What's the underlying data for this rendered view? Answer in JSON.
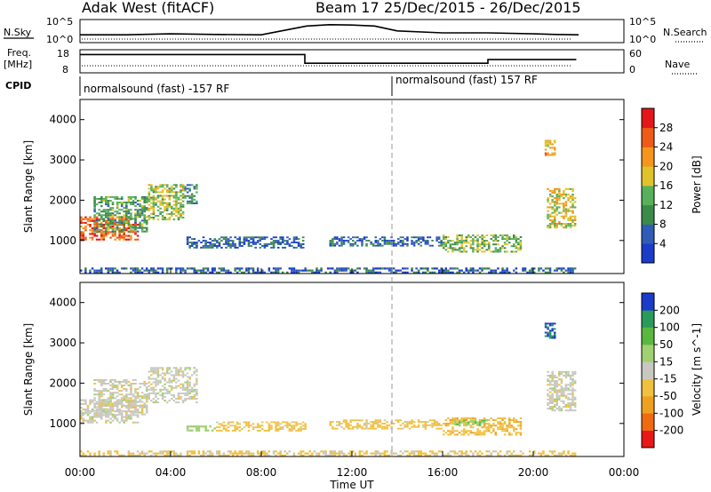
{
  "header": {
    "station": "Adak West (fitACF)",
    "beam": "Beam 17",
    "daterange": "25/Dec/2015 - 26/Dec/2015"
  },
  "nsky_panel": {
    "left_label": "N.Sky",
    "right_label": "N.Search",
    "left_ticks": [
      "10^5",
      "10^0"
    ],
    "right_ticks": [
      "10^5",
      "10^0"
    ]
  },
  "freq_panel": {
    "left_label_1": "Freq.",
    "left_label_2": "[MHz]",
    "right_label": "Nave",
    "left_ticks": [
      "18",
      "8"
    ],
    "right_ticks": [
      "60",
      "0"
    ]
  },
  "cpid_panel": {
    "label": "CPID",
    "segments": [
      "normalsound (fast) -157 RF",
      "normalsound (fast) 157 RF"
    ]
  },
  "power_panel": {
    "ylabel": "Slant Range [km]",
    "yticks": [
      "4000",
      "3000",
      "2000",
      "1000"
    ],
    "colorbar_label": "Power [dB]",
    "colorbar_ticks": [
      "28",
      "24",
      "20",
      "16",
      "12",
      "8",
      "4"
    ]
  },
  "velocity_panel": {
    "ylabel": "Slant Range [km]",
    "yticks": [
      "4000",
      "3000",
      "2000",
      "1000"
    ],
    "colorbar_label": "Velocity [m s^-1]",
    "colorbar_ticks": [
      "200",
      "100",
      "50",
      "15",
      "-15",
      "-50",
      "-100",
      "-200"
    ]
  },
  "xaxis": {
    "ticks": [
      "00:00",
      "04:00",
      "08:00",
      "12:00",
      "16:00",
      "20:00",
      "00:00"
    ],
    "label": "Time UT"
  },
  "colors": {
    "power_scale": [
      "#1a3cc8",
      "#2f5cb8",
      "#3c8a4a",
      "#58b05a",
      "#e0c22a",
      "#f5951e",
      "#ef5a16",
      "#e4161a"
    ],
    "velocity_scale": [
      "#e81818",
      "#f06a10",
      "#f0a020",
      "#f0c040",
      "#c8c8c0",
      "#a0d070",
      "#58b840",
      "#2a9a5a",
      "#1a3cc8"
    ]
  },
  "chart_data": [
    {
      "type": "line",
      "title": "N.Sky / N.Search",
      "xlim_hours": [
        0,
        24
      ],
      "series": [
        {
          "x": [
            0,
            2,
            4,
            6,
            8,
            10,
            11,
            12,
            13,
            14,
            16,
            18,
            20,
            21,
            22
          ],
          "y": [
            0.4,
            0.4,
            0.45,
            0.42,
            0.4,
            0.85,
            0.92,
            0.9,
            0.85,
            0.6,
            0.5,
            0.5,
            0.45,
            0.42,
            0.4
          ]
        }
      ]
    },
    {
      "type": "line",
      "xlim_hours": [
        0,
        24
      ],
      "ylim": [
        8,
        18
      ],
      "series": [
        {
          "x": [
            0,
            9.92,
            9.92,
            18,
            18,
            21.9
          ],
          "y": [
            16.6,
            16.6,
            12.5,
            12.5,
            14.2,
            14.2
          ]
        }
      ]
    },
    {
      "type": "heatmap",
      "xlim_hours": [
        0,
        24
      ],
      "ylim": [
        180,
        4500
      ],
      "regions": [
        {
          "t0": 0.0,
          "t1": 2.6,
          "r0": 1000,
          "r1": 1600,
          "power": 26
        },
        {
          "t0": 0.6,
          "t1": 3.0,
          "r0": 1200,
          "r1": 2100,
          "power": 12
        },
        {
          "t0": 3.0,
          "t1": 4.6,
          "r0": 1500,
          "r1": 2400,
          "power": 16
        },
        {
          "t0": 4.6,
          "t1": 5.2,
          "r0": 1900,
          "r1": 2400,
          "power": 10
        },
        {
          "t0": 4.7,
          "t1": 9.9,
          "r0": 800,
          "r1": 1100,
          "power": 6
        },
        {
          "t0": 11.0,
          "t1": 16.0,
          "r0": 850,
          "r1": 1100,
          "power": 6
        },
        {
          "t0": 16.0,
          "t1": 19.5,
          "r0": 700,
          "r1": 1150,
          "power": 14
        },
        {
          "t0": 20.5,
          "t1": 21.0,
          "r0": 3100,
          "r1": 3500,
          "power": 20
        },
        {
          "t0": 20.6,
          "t1": 21.9,
          "r0": 1300,
          "r1": 2300,
          "power": 18
        },
        {
          "t0": 0.0,
          "t1": 21.9,
          "r0": 180,
          "r1": 330,
          "power": 6
        }
      ]
    },
    {
      "type": "heatmap",
      "xlim_hours": [
        0,
        24
      ],
      "ylim": [
        180,
        4500
      ],
      "regions": [
        {
          "t0": 0.0,
          "t1": 2.6,
          "r0": 1000,
          "r1": 1600,
          "velocity": 0
        },
        {
          "t0": 0.6,
          "t1": 3.0,
          "r0": 1200,
          "r1": 2100,
          "velocity": 0
        },
        {
          "t0": 3.0,
          "t1": 5.2,
          "r0": 1500,
          "r1": 2400,
          "velocity": 0
        },
        {
          "t0": 4.7,
          "t1": 6.0,
          "r0": 800,
          "r1": 950,
          "velocity": 30
        },
        {
          "t0": 6.0,
          "t1": 10.0,
          "r0": 800,
          "r1": 1050,
          "velocity": -30
        },
        {
          "t0": 11.0,
          "t1": 16.0,
          "r0": 850,
          "r1": 1100,
          "velocity": -30
        },
        {
          "t0": 16.0,
          "t1": 19.5,
          "r0": 700,
          "r1": 1150,
          "velocity": -40
        },
        {
          "t0": 16.5,
          "t1": 18.0,
          "r0": 950,
          "r1": 1100,
          "velocity": 40
        },
        {
          "t0": 20.5,
          "t1": 21.0,
          "r0": 3100,
          "r1": 3500,
          "velocity": 200
        },
        {
          "t0": 20.6,
          "t1": 21.9,
          "r0": 1300,
          "r1": 2300,
          "velocity": 0
        },
        {
          "t0": 0.0,
          "t1": 21.9,
          "r0": 180,
          "r1": 330,
          "velocity": -20
        }
      ]
    }
  ]
}
